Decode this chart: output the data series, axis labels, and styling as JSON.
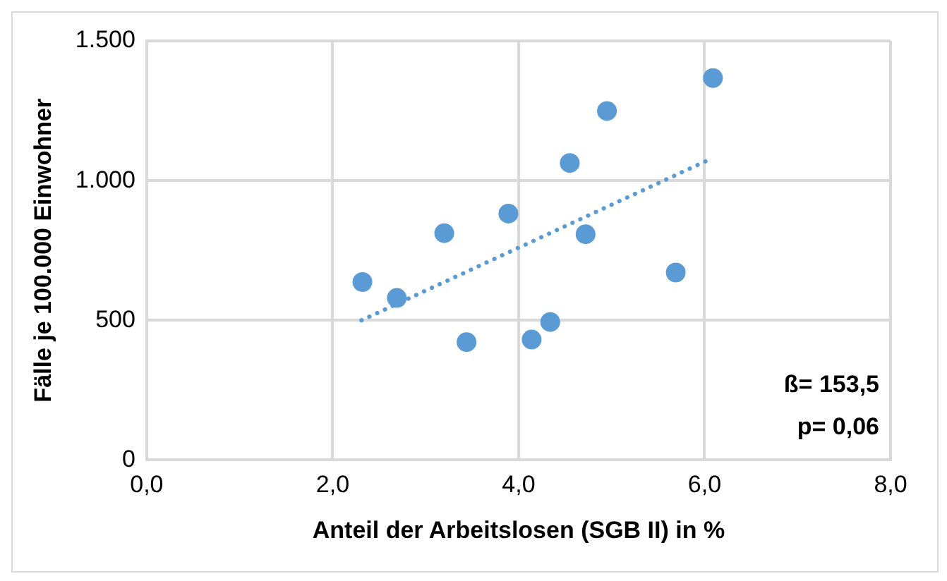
{
  "chart_data": {
    "type": "scatter",
    "xlabel": "Anteil der Arbeitslosen (SGB II) in %",
    "ylabel": "Fälle je 100.000 Einwohner",
    "xlim": [
      0,
      8
    ],
    "xticks": [
      {
        "value": 0,
        "label": "0,0"
      },
      {
        "value": 2,
        "label": "2,0"
      },
      {
        "value": 4,
        "label": "4,0"
      },
      {
        "value": 6,
        "label": "6,0"
      },
      {
        "value": 8,
        "label": "8,0"
      }
    ],
    "ylim": [
      0,
      1500
    ],
    "yticks": [
      0,
      {
        "value": 500,
        "label": "500"
      },
      {
        "value": 1000,
        "label": "1.000"
      },
      {
        "value": 1500,
        "label": "1.500"
      }
    ],
    "grid": true,
    "legend": false,
    "marker": "circle",
    "series": [
      {
        "color": "#5b9bd5",
        "x": [
          2.32,
          2.69,
          3.2,
          3.44,
          3.89,
          4.14,
          4.34,
          4.55,
          4.72,
          4.95,
          5.69,
          6.09
        ],
        "values": [
          637,
          580,
          812,
          422,
          882,
          431,
          494,
          1063,
          808,
          1249,
          671,
          1367
        ]
      },
      {
        "type": "line",
        "color": "#5b9bd5",
        "line_style": "dotted",
        "marker": "none",
        "x": [
          2.31,
          6.01
        ],
        "values": [
          500,
          1069
        ]
      }
    ],
    "annotations": [
      "ß= 153,5",
      "p= 0,06"
    ]
  }
}
